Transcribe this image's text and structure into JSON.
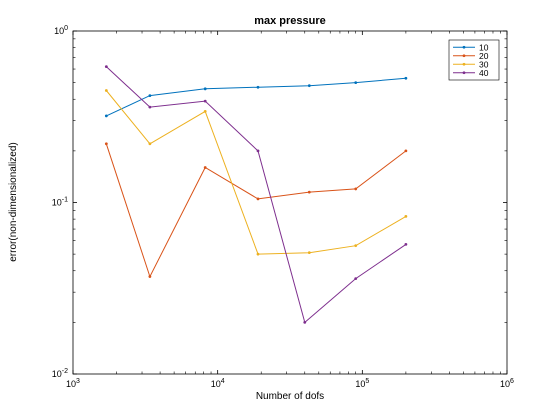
{
  "chart_data": {
    "type": "line",
    "title": "max pressure",
    "xlabel": "Number of dofs",
    "ylabel": "error(non-dimensionalized)",
    "xscale": "log",
    "yscale": "log",
    "xlim": [
      1000,
      1000000
    ],
    "ylim": [
      0.01,
      1
    ],
    "grid": false,
    "legend_position": "top-right",
    "x_ticks": [
      {
        "value": 1000,
        "base": "10",
        "exp": "3"
      },
      {
        "value": 10000,
        "base": "10",
        "exp": "4"
      },
      {
        "value": 100000,
        "base": "10",
        "exp": "5"
      },
      {
        "value": 1000000,
        "base": "10",
        "exp": "6"
      }
    ],
    "y_ticks": [
      {
        "value": 0.01,
        "base": "10",
        "exp": "-2"
      },
      {
        "value": 0.1,
        "base": "10",
        "exp": "-1"
      },
      {
        "value": 1,
        "base": "10",
        "exp": "0"
      }
    ],
    "series": [
      {
        "name": "10",
        "color": "#0072bd",
        "points": [
          [
            1700,
            0.32
          ],
          [
            3400,
            0.42
          ],
          [
            8200,
            0.46
          ],
          [
            19000,
            0.47
          ],
          [
            43000,
            0.48
          ],
          [
            90000,
            0.5
          ],
          [
            200000,
            0.53
          ]
        ]
      },
      {
        "name": "20",
        "color": "#d95319",
        "points": [
          [
            1700,
            0.22
          ],
          [
            3400,
            0.037
          ],
          [
            8200,
            0.16
          ],
          [
            19000,
            0.105
          ],
          [
            43000,
            0.115
          ],
          [
            90000,
            0.12
          ],
          [
            200000,
            0.2
          ]
        ]
      },
      {
        "name": "30",
        "color": "#edb120",
        "points": [
          [
            1700,
            0.45
          ],
          [
            3400,
            0.22
          ],
          [
            8200,
            0.34
          ],
          [
            19000,
            0.05
          ],
          [
            43000,
            0.051
          ],
          [
            90000,
            0.056
          ],
          [
            200000,
            0.083
          ]
        ]
      },
      {
        "name": "40",
        "color": "#7e2f8e",
        "points": [
          [
            1700,
            0.62
          ],
          [
            3400,
            0.36
          ],
          [
            8200,
            0.39
          ],
          [
            19000,
            0.2
          ],
          [
            40000,
            0.02
          ],
          [
            90000,
            0.036
          ],
          [
            200000,
            0.057
          ]
        ]
      }
    ]
  }
}
